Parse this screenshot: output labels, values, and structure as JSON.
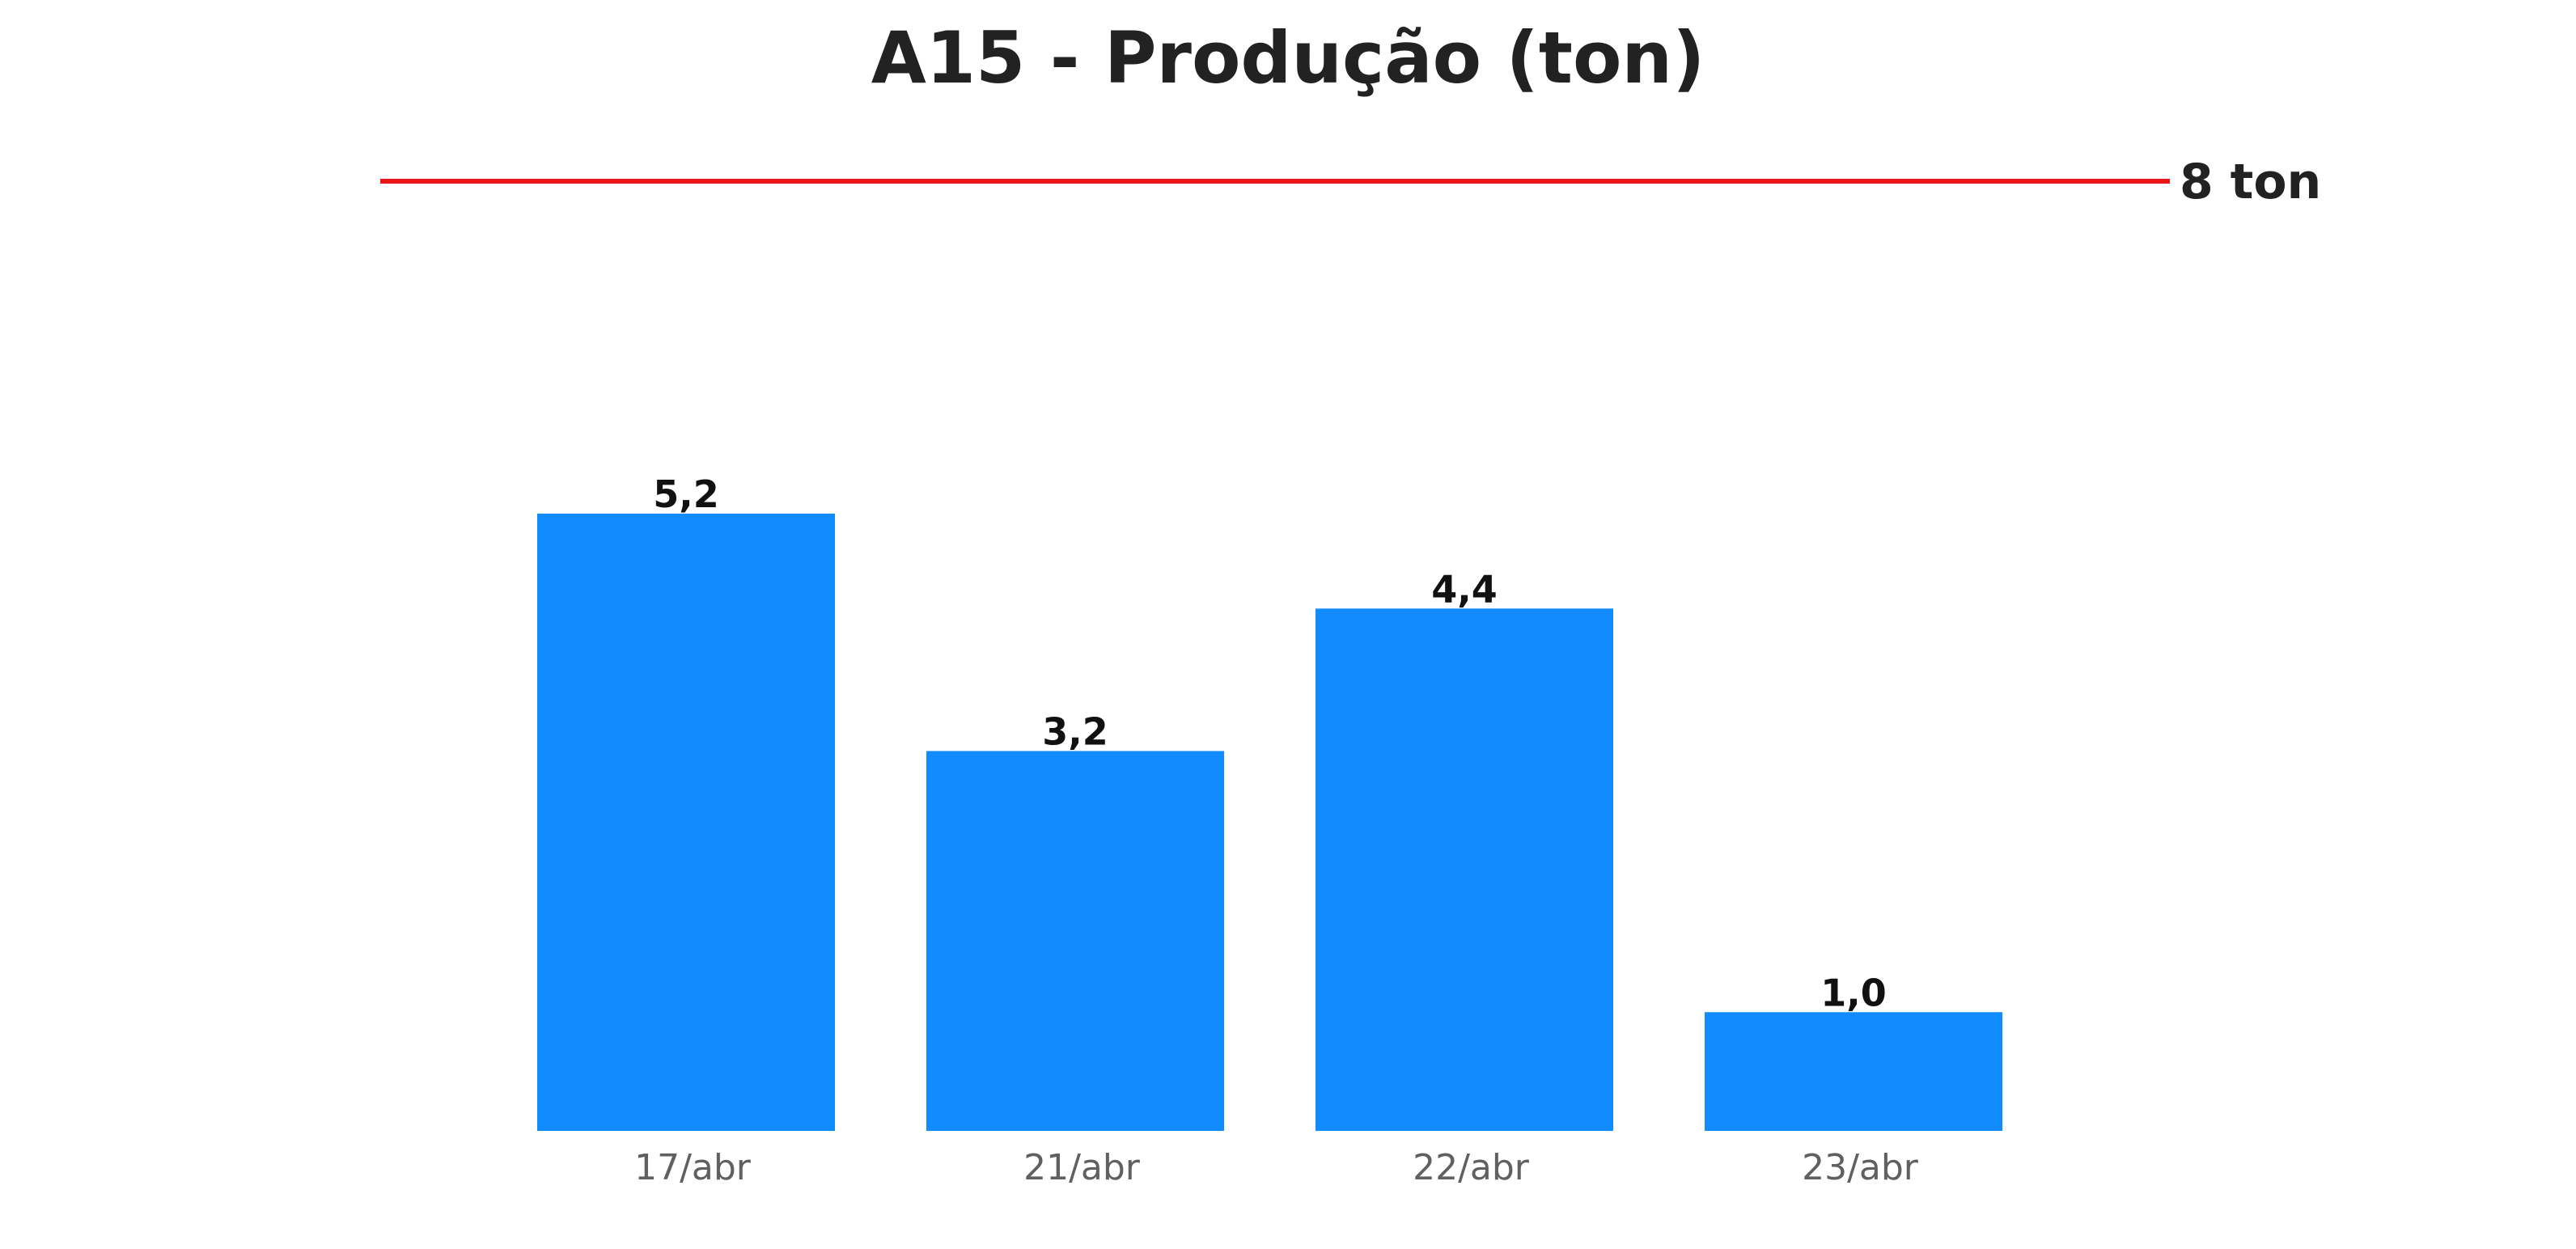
{
  "chart_data": {
    "type": "bar",
    "title": "A15 - Produção (ton)",
    "categories": [
      "17/abr",
      "21/abr",
      "22/abr",
      "23/abr"
    ],
    "values": [
      5.2,
      3.2,
      4.4,
      1.0
    ],
    "value_labels": [
      "5,2",
      "3,2",
      "4,4",
      "1,0"
    ],
    "xlabel": "",
    "ylabel": "",
    "ylim": [
      0,
      8
    ],
    "grid": false,
    "legend": "none",
    "target": {
      "value": 8,
      "label": "8 ton",
      "color": "#e8161b"
    },
    "bar_color": "#128bff"
  }
}
